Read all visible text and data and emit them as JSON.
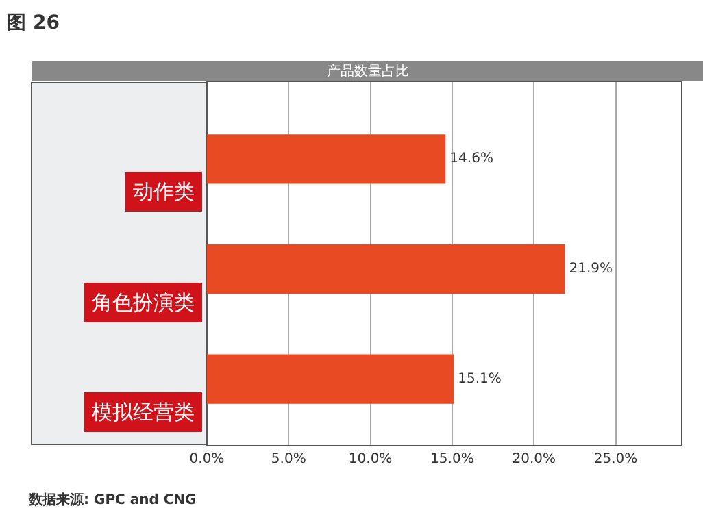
{
  "chart_data": {
    "type": "bar",
    "orientation": "horizontal",
    "title": "图 26",
    "subtitle": "产品数量占比",
    "categories": [
      "动作类",
      "角色扮演类",
      "模拟经营类"
    ],
    "values": [
      14.6,
      21.9,
      15.1
    ],
    "color": "#e84a24",
    "value_labels": [
      "14.6%",
      "21.9%",
      "15.1%"
    ],
    "xlim": [
      0,
      29
    ],
    "xticks": [
      {
        "value": 0,
        "label": "0.0%"
      },
      {
        "value": 5,
        "label": "5.0%"
      },
      {
        "value": 10,
        "label": "10.0%"
      },
      {
        "value": 15,
        "label": "15.0%"
      },
      {
        "value": 20,
        "label": "20.0%"
      },
      {
        "value": 25,
        "label": "25.0%"
      }
    ],
    "grid": "x",
    "legend": false,
    "annotations": [
      "数据来源: GPC and CNG"
    ]
  }
}
